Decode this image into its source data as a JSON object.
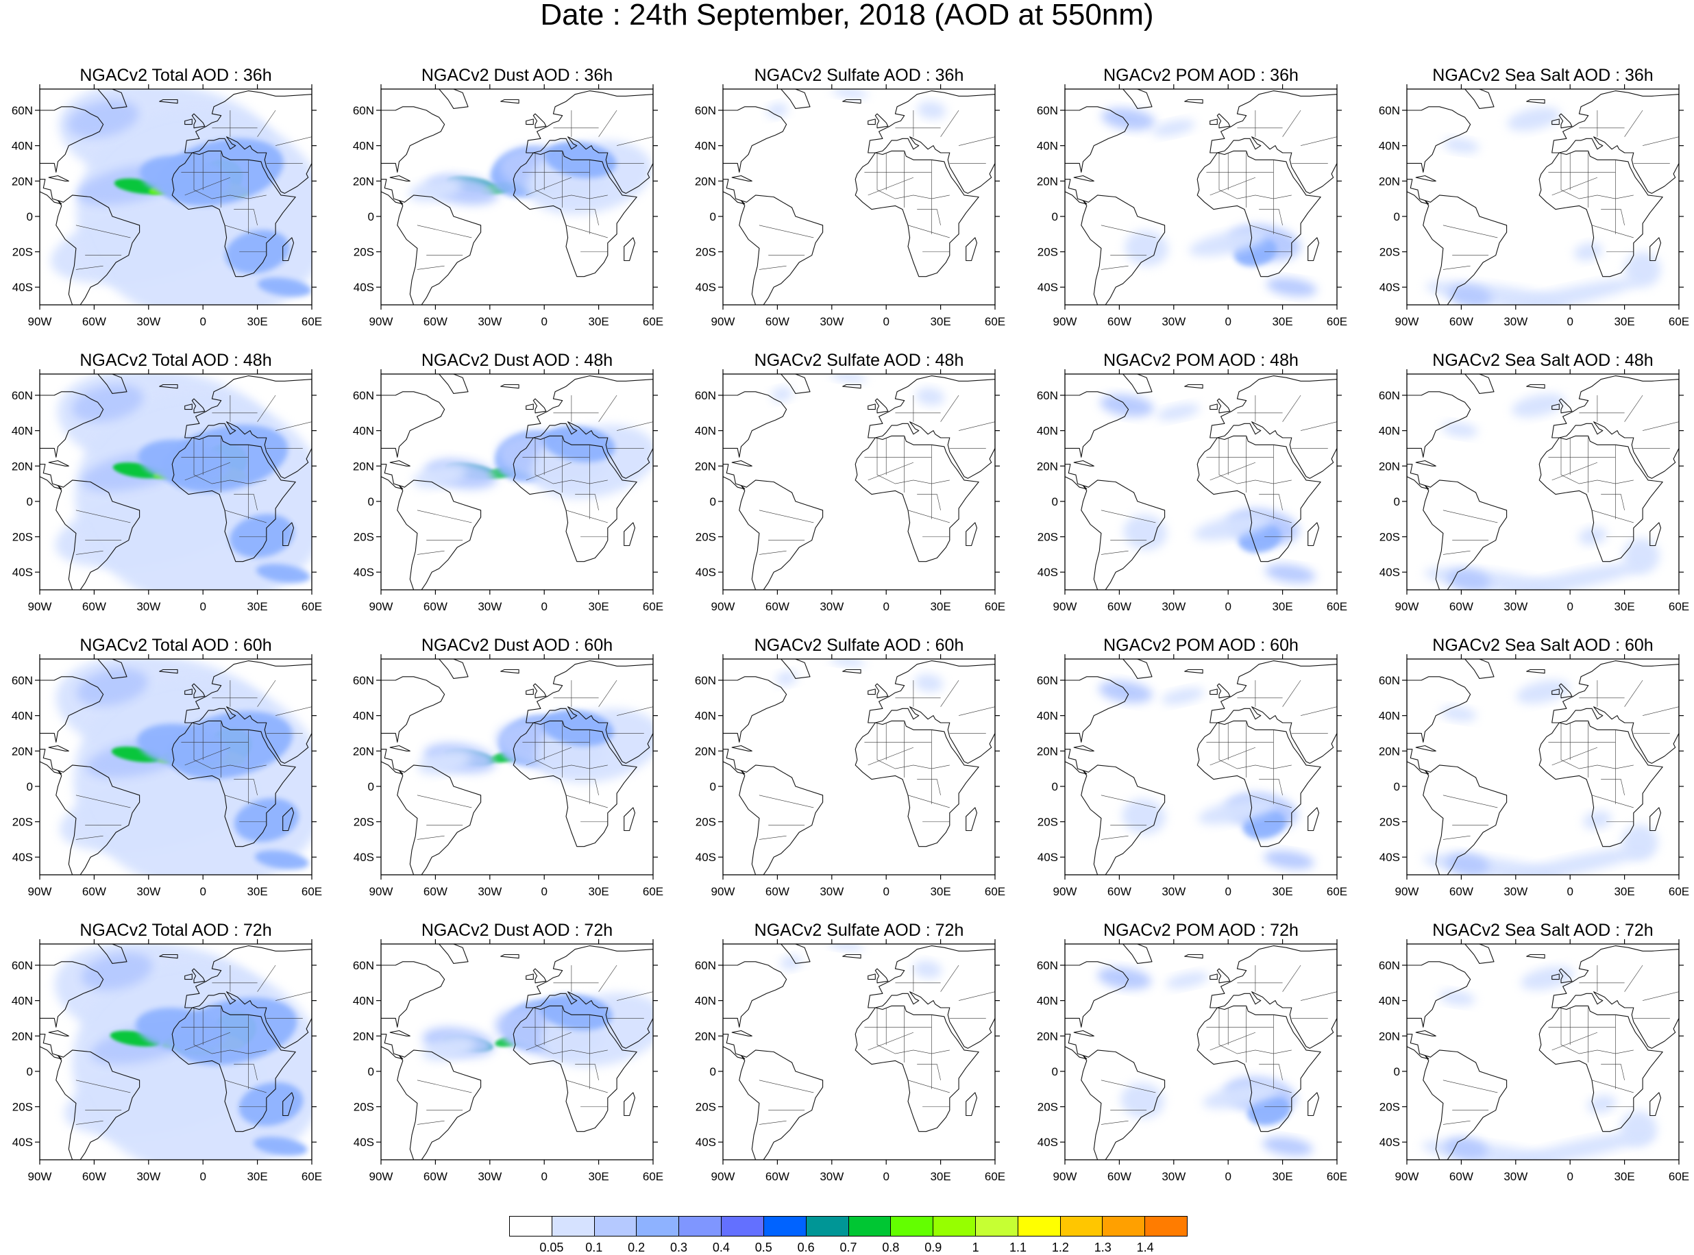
{
  "title": "Date : 24th September, 2018 (AOD at 550nm)",
  "lat_ticks": [
    "60N",
    "40N",
    "20N",
    "0",
    "20S",
    "40S"
  ],
  "lon_ticks": [
    "90W",
    "60W",
    "30W",
    "0",
    "30E",
    "60E"
  ],
  "panels": [
    {
      "title": "NGACv2 Total AOD : 36h",
      "species": "total"
    },
    {
      "title": "NGACv2 Dust AOD : 36h",
      "species": "dust"
    },
    {
      "title": "NGACv2 Sulfate AOD : 36h",
      "species": "sulfate"
    },
    {
      "title": "NGACv2 POM AOD : 36h",
      "species": "pom"
    },
    {
      "title": "NGACv2 Sea Salt AOD : 36h",
      "species": "seasalt"
    },
    {
      "title": "NGACv2 Total AOD : 48h",
      "species": "total"
    },
    {
      "title": "NGACv2 Dust AOD : 48h",
      "species": "dust"
    },
    {
      "title": "NGACv2 Sulfate AOD : 48h",
      "species": "sulfate"
    },
    {
      "title": "NGACv2 POM AOD : 48h",
      "species": "pom"
    },
    {
      "title": "NGACv2 Sea Salt AOD : 48h",
      "species": "seasalt"
    },
    {
      "title": "NGACv2 Total AOD : 60h",
      "species": "total"
    },
    {
      "title": "NGACv2 Dust AOD : 60h",
      "species": "dust"
    },
    {
      "title": "NGACv2 Sulfate AOD : 60h",
      "species": "sulfate"
    },
    {
      "title": "NGACv2 POM AOD : 60h",
      "species": "pom"
    },
    {
      "title": "NGACv2 Sea Salt AOD : 60h",
      "species": "seasalt"
    },
    {
      "title": "NGACv2 Total AOD : 72h",
      "species": "total"
    },
    {
      "title": "NGACv2 Dust AOD : 72h",
      "species": "dust"
    },
    {
      "title": "NGACv2 Sulfate AOD : 72h",
      "species": "sulfate"
    },
    {
      "title": "NGACv2 POM AOD : 72h",
      "species": "pom"
    },
    {
      "title": "NGACv2 Sea Salt  AOD : 72h",
      "species": "seasalt"
    }
  ],
  "colorbar": {
    "colors": [
      "#ffffff",
      "#d6e2ff",
      "#b5c9ff",
      "#8eb2ff",
      "#7f96ff",
      "#6370ff",
      "#0063ff",
      "#009696",
      "#00c633",
      "#63ff00",
      "#96ff00",
      "#c6ff33",
      "#ffff00",
      "#ffc600",
      "#ffa000",
      "#ff7c00",
      "#ff1900"
    ],
    "labels": [
      "0.05",
      "0.1",
      "0.2",
      "0.3",
      "0.4",
      "0.5",
      "0.6",
      "0.7",
      "0.8",
      "0.9",
      "1",
      "1.1",
      "1.2",
      "1.3",
      "1.4"
    ]
  }
}
